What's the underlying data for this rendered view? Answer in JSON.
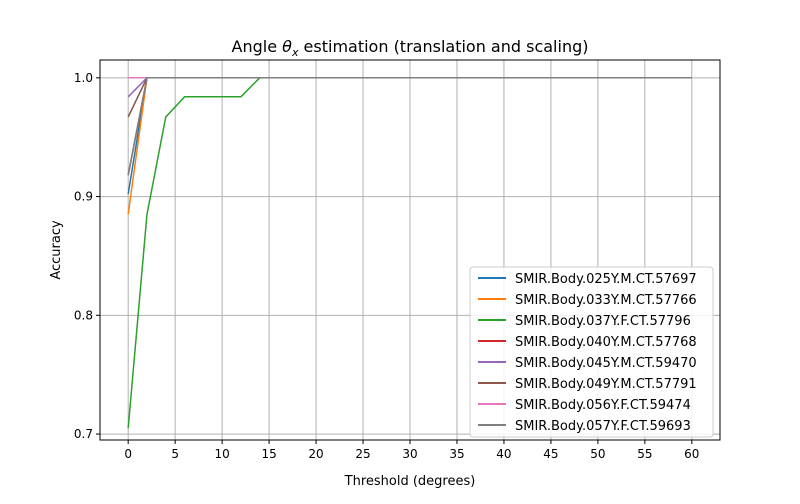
{
  "chart_data": {
    "type": "line",
    "title": {
      "prefix": "Angle ",
      "symbol": "θ",
      "subscript": "x",
      "suffix": " estimation (translation and scaling)"
    },
    "xlabel": "Threshold (degrees)",
    "ylabel": "Accuracy",
    "xlim": [
      -3,
      63
    ],
    "ylim": [
      0.695,
      1.015
    ],
    "xticks": [
      0,
      5,
      10,
      15,
      20,
      25,
      30,
      35,
      40,
      45,
      50,
      55,
      60
    ],
    "yticks": [
      0.7,
      0.8,
      0.9,
      1.0
    ],
    "ytick_labels": [
      "0.7",
      "0.8",
      "0.9",
      "1.0"
    ],
    "grid": true,
    "legend_position": "lower right",
    "x": [
      0,
      2,
      4,
      6,
      8,
      10,
      12,
      14,
      16,
      18,
      20,
      22,
      24,
      26,
      28,
      30,
      32,
      34,
      36,
      38,
      40,
      42,
      44,
      46,
      48,
      50,
      52,
      54,
      56,
      58,
      60
    ],
    "series": [
      {
        "name": "SMIR.Body.025Y.M.CT.57697",
        "color": "#1f77b4",
        "values": [
          0.902,
          1,
          1,
          1,
          1,
          1,
          1,
          1,
          1,
          1,
          1,
          1,
          1,
          1,
          1,
          1,
          1,
          1,
          1,
          1,
          1,
          1,
          1,
          1,
          1,
          1,
          1,
          1,
          1,
          1,
          1
        ]
      },
      {
        "name": "SMIR.Body.033Y.M.CT.57766",
        "color": "#ff7f0e",
        "values": [
          0.885,
          1,
          1,
          1,
          1,
          1,
          1,
          1,
          1,
          1,
          1,
          1,
          1,
          1,
          1,
          1,
          1,
          1,
          1,
          1,
          1,
          1,
          1,
          1,
          1,
          1,
          1,
          1,
          1,
          1,
          1
        ]
      },
      {
        "name": "SMIR.Body.037Y.F.CT.57796",
        "color": "#2ca02c",
        "values": [
          0.705,
          0.885,
          0.967,
          0.984,
          0.984,
          0.984,
          0.984,
          1,
          1,
          1,
          1,
          1,
          1,
          1,
          1,
          1,
          1,
          1,
          1,
          1,
          1,
          1,
          1,
          1,
          1,
          1,
          1,
          1,
          1,
          1,
          1
        ]
      },
      {
        "name": "SMIR.Body.040Y.M.CT.57768",
        "color": "#d62728",
        "values": [
          0.918,
          1,
          1,
          1,
          1,
          1,
          1,
          1,
          1,
          1,
          1,
          1,
          1,
          1,
          1,
          1,
          1,
          1,
          1,
          1,
          1,
          1,
          1,
          1,
          1,
          1,
          1,
          1,
          1,
          1,
          1
        ]
      },
      {
        "name": "SMIR.Body.045Y.M.CT.59470",
        "color": "#9467bd",
        "values": [
          0.984,
          1,
          1,
          1,
          1,
          1,
          1,
          1,
          1,
          1,
          1,
          1,
          1,
          1,
          1,
          1,
          1,
          1,
          1,
          1,
          1,
          1,
          1,
          1,
          1,
          1,
          1,
          1,
          1,
          1,
          1
        ]
      },
      {
        "name": "SMIR.Body.049Y.M.CT.57791",
        "color": "#8c564b",
        "values": [
          0.967,
          1,
          1,
          1,
          1,
          1,
          1,
          1,
          1,
          1,
          1,
          1,
          1,
          1,
          1,
          1,
          1,
          1,
          1,
          1,
          1,
          1,
          1,
          1,
          1,
          1,
          1,
          1,
          1,
          1,
          1
        ]
      },
      {
        "name": "SMIR.Body.056Y.F.CT.59474",
        "color": "#e377c2",
        "values": [
          1,
          1,
          1,
          1,
          1,
          1,
          1,
          1,
          1,
          1,
          1,
          1,
          1,
          1,
          1,
          1,
          1,
          1,
          1,
          1,
          1,
          1,
          1,
          1,
          1,
          1,
          1,
          1,
          1,
          1,
          1
        ]
      },
      {
        "name": "SMIR.Body.057Y.F.CT.59693",
        "color": "#7f7f7f",
        "values": [
          0.918,
          1,
          1,
          1,
          1,
          1,
          1,
          1,
          1,
          1,
          1,
          1,
          1,
          1,
          1,
          1,
          1,
          1,
          1,
          1,
          1,
          1,
          1,
          1,
          1,
          1,
          1,
          1,
          1,
          1,
          1
        ]
      }
    ]
  }
}
